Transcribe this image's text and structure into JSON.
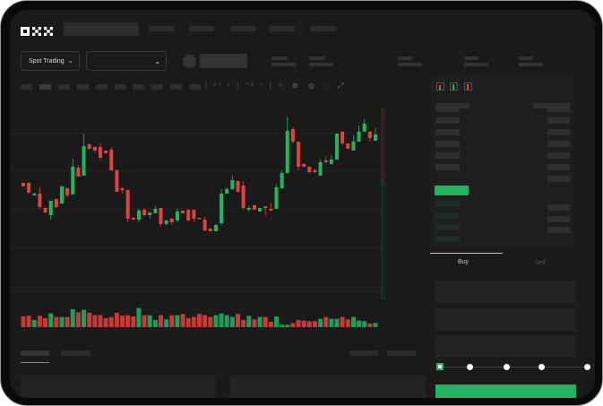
{
  "header": {
    "logo": "OKX"
  },
  "market": {
    "mode_label": "Spot Trading",
    "mode_icon": "chevron-down-icon",
    "pair_icon": "chevron-down-icon"
  },
  "trade": {
    "tabs": [
      {
        "label": "Buy",
        "active": true
      },
      {
        "label": "Sell",
        "active": false
      }
    ],
    "leverage_steps": 5,
    "selected_step": 0
  },
  "colors": {
    "up": "#22b561",
    "down": "#e0433f",
    "background": "#1a1a1a"
  },
  "chart_data": {
    "type": "candlestick",
    "columns": [
      "open",
      "high",
      "low",
      "close"
    ],
    "candles": [
      [
        167,
        167,
        163,
        163
      ],
      [
        167,
        168,
        155,
        156
      ],
      [
        153,
        156,
        153,
        155
      ],
      [
        155,
        162,
        138,
        140
      ],
      [
        139,
        140,
        133,
        134
      ],
      [
        131,
        147,
        126,
        147
      ],
      [
        149,
        149,
        139,
        140
      ],
      [
        144,
        164,
        143,
        163
      ],
      [
        161,
        162,
        151,
        153
      ],
      [
        154,
        194,
        154,
        185
      ],
      [
        184,
        187,
        174,
        174
      ],
      [
        175,
        222,
        175,
        208
      ],
      [
        210,
        211,
        204,
        205
      ],
      [
        207,
        208,
        201,
        203
      ],
      [
        207,
        212,
        193,
        195
      ],
      [
        203,
        203,
        200,
        200
      ],
      [
        204,
        207,
        180,
        181
      ],
      [
        181,
        182,
        157,
        157
      ],
      [
        161,
        162,
        155,
        159
      ],
      [
        159,
        159,
        123,
        127
      ],
      [
        128,
        129,
        125,
        126
      ],
      [
        126,
        138,
        123,
        136
      ],
      [
        137,
        139,
        130,
        131
      ],
      [
        131,
        134,
        127,
        134
      ],
      [
        133,
        141,
        133,
        138
      ],
      [
        139,
        139,
        118,
        121
      ],
      [
        121,
        126,
        119,
        125
      ],
      [
        127,
        128,
        120,
        123
      ],
      [
        125,
        138,
        124,
        135
      ],
      [
        136,
        136,
        133,
        133
      ],
      [
        137,
        138,
        124,
        125
      ],
      [
        137,
        137,
        123,
        127
      ],
      [
        128,
        128,
        127,
        127
      ],
      [
        126,
        129,
        113,
        114
      ],
      [
        116,
        116,
        113,
        113
      ],
      [
        113,
        121,
        113,
        120
      ],
      [
        122,
        160,
        120,
        155
      ],
      [
        155,
        162,
        155,
        160
      ],
      [
        160,
        175,
        159,
        170
      ],
      [
        169,
        169,
        157,
        157
      ],
      [
        164,
        169,
        137,
        139
      ],
      [
        137,
        141,
        135,
        139
      ],
      [
        142,
        142,
        137,
        137
      ],
      [
        135,
        139,
        135,
        139
      ],
      [
        141,
        141,
        130,
        139
      ],
      [
        138,
        144,
        136,
        136
      ],
      [
        138,
        165,
        138,
        162
      ],
      [
        161,
        181,
        160,
        178
      ],
      [
        178,
        241,
        177,
        225
      ],
      [
        227,
        229,
        211,
        213
      ],
      [
        213,
        213,
        181,
        185
      ],
      [
        188,
        189,
        185,
        185
      ],
      [
        185,
        185,
        177,
        179
      ],
      [
        181,
        183,
        178,
        179
      ],
      [
        175,
        193,
        175,
        190
      ],
      [
        192,
        196,
        189,
        190
      ],
      [
        188,
        198,
        188,
        193
      ],
      [
        193,
        222,
        193,
        222
      ],
      [
        224,
        225,
        209,
        211
      ],
      [
        211,
        211,
        205,
        205
      ],
      [
        203,
        220,
        203,
        213
      ],
      [
        213,
        231,
        213,
        224
      ],
      [
        224,
        238,
        224,
        233
      ],
      [
        224,
        225,
        213,
        217
      ],
      [
        214,
        228,
        214,
        221
      ]
    ],
    "volume": [
      36,
      38,
      24,
      38,
      30,
      46,
      34,
      34,
      34,
      60,
      50,
      58,
      48,
      40,
      40,
      30,
      34,
      48,
      38,
      40,
      36,
      64,
      40,
      40,
      24,
      40,
      26,
      40,
      40,
      44,
      30,
      34,
      44,
      40,
      34,
      40,
      46,
      40,
      34,
      44,
      24,
      38,
      26,
      34,
      34,
      18,
      36,
      8,
      8,
      14,
      24,
      22,
      20,
      20,
      28,
      34,
      28,
      28,
      34,
      26,
      34,
      22,
      20,
      12,
      14
    ]
  }
}
